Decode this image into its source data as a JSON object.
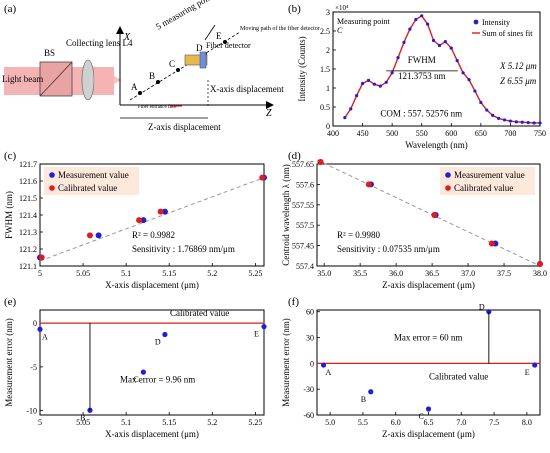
{
  "panels": [
    {
      "id": "a",
      "label": "(a)",
      "texts": {
        "measuring_points": "5 measuring points",
        "moving_path": "Moving path of the fiber detector",
        "fiber_detector": "Fiber detector",
        "fiber_entrance": "Fiber entrance face",
        "x_axis": "X",
        "z_axis": "Z",
        "x_disp": "X-axis displacement",
        "z_disp": "Z-axis displacement",
        "light_beam": "Light beam",
        "bs": "BS",
        "lens": "Collecting lens L4",
        "point_labels": [
          "A",
          "B",
          "C",
          "D",
          "E"
        ]
      }
    },
    {
      "id": "b",
      "label": "(b)",
      "chart_data": {
        "type": "line",
        "xlabel": "Wavelength (nm)",
        "ylabel": "Intensity (Counts)",
        "y_multiplier": "×10⁴",
        "xlim": [
          400,
          750
        ],
        "ylim": [
          0,
          3
        ],
        "xticks": [
          400,
          450,
          500,
          550,
          600,
          650,
          700,
          750
        ],
        "yticks": [
          0,
          0.5,
          1,
          1.5,
          2,
          2.5,
          3
        ],
        "series": [
          {
            "name": "Intensity",
            "color": "#1f1fd6",
            "marker": "dot",
            "x": [
              420,
              430,
              440,
              450,
              460,
              470,
              480,
              490,
              500,
              510,
              520,
              530,
              540,
              550,
              560,
              570,
              580,
              590,
              600,
              610,
              620,
              630,
              640,
              650,
              660,
              670,
              680,
              690,
              700,
              710,
              720,
              730,
              740,
              750
            ],
            "y": [
              0.22,
              0.45,
              0.8,
              1.12,
              1.2,
              1.1,
              1.05,
              1.15,
              1.4,
              1.8,
              2.2,
              2.55,
              2.8,
              2.9,
              2.68,
              2.25,
              2.12,
              2.22,
              2.05,
              1.72,
              1.4,
              1.22,
              0.92,
              0.62,
              0.42,
              0.28,
              0.2,
              0.16,
              0.13,
              0.11,
              0.1,
              0.09,
              0.08,
              0.08
            ]
          },
          {
            "name": "Sum of sines fit",
            "color": "#e31a1c",
            "marker": "line"
          }
        ],
        "annotations": {
          "point_title": "Measuring point",
          "point_letter": "C",
          "fwhm_label": "FWHM",
          "fwhm_value": "121.3753 nm",
          "x_val": "X 5.12 μm",
          "z_val": "Z 6.55 μm",
          "com": "COM : 557. 52576 nm"
        }
      }
    },
    {
      "id": "c",
      "label": "(c)",
      "chart_data": {
        "type": "scatter",
        "xlabel": "X-axis displacement (μm)",
        "ylabel": "FWHM (nm)",
        "xlim": [
          5.0,
          5.26
        ],
        "ylim": [
          121.1,
          121.7
        ],
        "xticks": [
          5,
          5.05,
          5.1,
          5.15,
          5.2,
          5.25
        ],
        "xtick_labels": [
          "5",
          "5.05",
          "5.1",
          "5.15",
          "5.2",
          "5.25"
        ],
        "yticks": [
          121.1,
          121.2,
          121.3,
          121.4,
          121.5,
          121.6,
          121.7
        ],
        "series": [
          {
            "name": "Measurement value",
            "color": "#1f1fd6",
            "x": [
              5.0,
              5.068,
              5.12,
              5.145,
              5.26
            ],
            "y": [
              121.15,
              121.28,
              121.37,
              121.42,
              121.62
            ]
          },
          {
            "name": "Calibrated value",
            "color": "#e31a1c",
            "x": [
              5.002,
              5.058,
              5.115,
              5.14,
              5.258
            ],
            "y": [
              121.15,
              121.28,
              121.37,
              121.42,
              121.62
            ]
          }
        ],
        "fit_line": {
          "x": [
            5.0,
            5.26
          ],
          "y": [
            121.13,
            121.62
          ]
        },
        "annotations": {
          "r2": "R² = 0.9982",
          "sensitivity": "Sensitivity : 1.76869 nm/μm"
        }
      }
    },
    {
      "id": "d",
      "label": "(d)",
      "chart_data": {
        "type": "scatter",
        "xlabel": "Z-axis displacement (μm)",
        "ylabel": "Centroid wavelength λ (nm)",
        "xlim": [
          34.9,
          38.0
        ],
        "ylim": [
          557.4,
          557.65
        ],
        "xticks": [
          35.0,
          35.5,
          36.0,
          36.5,
          37.0,
          37.5,
          38.0
        ],
        "xtick_labels": [
          "35.0",
          "35.5",
          "36.0",
          "36.5",
          "37.0",
          "37.5",
          "38.0"
        ],
        "yticks": [
          557.4,
          557.45,
          557.5,
          557.55,
          557.6,
          557.65
        ],
        "series": [
          {
            "name": "Measurement value",
            "color": "#1f1fd6",
            "x": [
              34.95,
              35.65,
              36.55,
              37.38,
              38.0
            ],
            "y": [
              557.655,
              557.6,
              557.525,
              557.455,
              557.405
            ]
          },
          {
            "name": "Calibrated value",
            "color": "#e31a1c",
            "x": [
              34.95,
              35.62,
              36.53,
              37.33,
              38.0
            ],
            "y": [
              557.655,
              557.6,
              557.525,
              557.455,
              557.405
            ]
          }
        ],
        "fit_line": {
          "x": [
            34.9,
            38.0
          ],
          "y": [
            557.66,
            557.4
          ]
        },
        "annotations": {
          "r2": "R² = 0.9980",
          "sensitivity": "Sensitivity : 0.07535 nm/μm"
        }
      }
    },
    {
      "id": "e",
      "label": "(e)",
      "chart_data": {
        "type": "scatter",
        "xlabel": "X-axis displacement (μm)",
        "ylabel": "Measurement error (nm)",
        "xlim": [
          5.0,
          5.26
        ],
        "ylim": [
          -10.5,
          1.5
        ],
        "xticks": [
          5,
          5.05,
          5.1,
          5.15,
          5.2,
          5.25
        ],
        "xtick_labels": [
          "5",
          "5.05",
          "5.1",
          "5.15",
          "5.2",
          "5.25"
        ],
        "yticks": [
          -10,
          -5,
          0
        ],
        "series": [
          {
            "name": "Measurement error",
            "color": "#1f1fd6",
            "x": [
              5.0,
              5.058,
              5.12,
              5.145,
              5.26
            ],
            "y": [
              -0.7,
              -9.96,
              -5.6,
              -1.3,
              -0.4
            ],
            "labels": [
              "A",
              "B",
              "C",
              "D",
              "E"
            ]
          }
        ],
        "reference_line": {
          "y": 0,
          "color": "#e31a1c",
          "label": "Calibrated value"
        },
        "annotations": {
          "max_error": "Max error = 9.96 nm"
        }
      }
    },
    {
      "id": "f",
      "label": "(f)",
      "chart_data": {
        "type": "scatter",
        "xlabel": "Z-axis displacement (μm)",
        "ylabel": "Measurement error (nm)",
        "xlim": [
          4.8,
          8.2
        ],
        "ylim": [
          -60,
          62
        ],
        "xticks": [
          5.0,
          5.5,
          6.0,
          6.5,
          7.0,
          7.5,
          8.0
        ],
        "xtick_labels": [
          "5.0",
          "5.5",
          "6.0",
          "6.5",
          "7.0",
          "7.5",
          "8.0"
        ],
        "yticks": [
          -60,
          -30,
          0,
          30,
          60
        ],
        "series": [
          {
            "name": "Measurement error",
            "color": "#1f1fd6",
            "x": [
              4.9,
              5.62,
              6.5,
              7.42,
              8.12
            ],
            "y": [
              -2,
              -33,
              -53,
              60,
              -2
            ],
            "labels": [
              "A",
              "B",
              "C",
              "D",
              "E"
            ]
          }
        ],
        "reference_line": {
          "y": 0,
          "color": "#e31a1c",
          "label": "Calibrated value"
        },
        "annotations": {
          "max_error": "Max error = 60 nm"
        }
      }
    }
  ]
}
